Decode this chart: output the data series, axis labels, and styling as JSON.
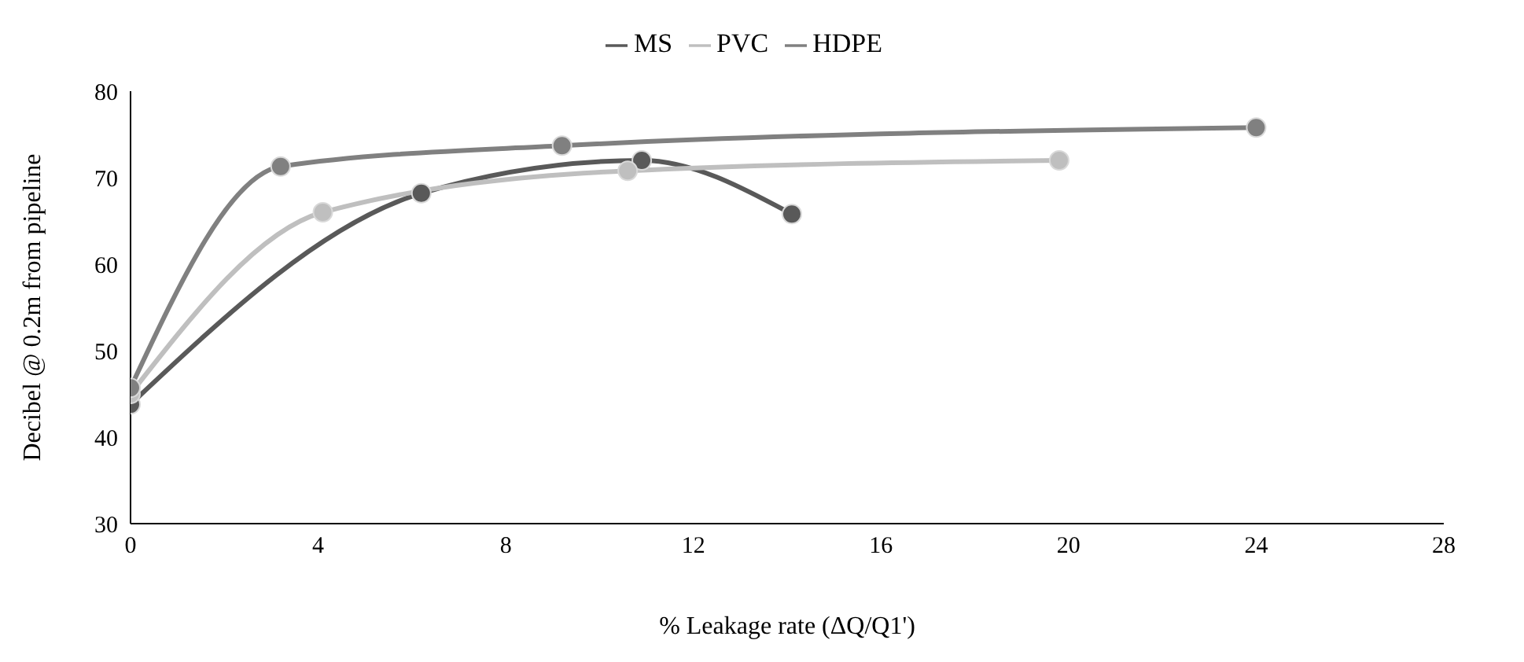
{
  "chart_data": {
    "type": "line",
    "xlabel": "% Leakage rate (ΔQ/Q1')",
    "ylabel": "Decibel @ 0.2m from pipeline",
    "xlim": [
      0,
      28
    ],
    "xticks": [
      0,
      4,
      8,
      12,
      16,
      20,
      24,
      28
    ],
    "ylim": [
      30,
      80
    ],
    "yticks": [
      30,
      40,
      50,
      60,
      70,
      80
    ],
    "grid": false,
    "legend": "top",
    "marker": "circle",
    "line_style": "solid",
    "series": [
      {
        "name": "MS",
        "color": "#595959",
        "x": [
          0,
          6.2,
          10.9,
          14.1
        ],
        "values": [
          43.8,
          68.2,
          72,
          65.8
        ]
      },
      {
        "name": "PVC",
        "color": "#bfbfbf",
        "x": [
          0,
          4.1,
          10.6,
          19.8
        ],
        "values": [
          45,
          66,
          70.8,
          72
        ]
      },
      {
        "name": "HDPE",
        "color": "#808080",
        "x": [
          0,
          3.2,
          9.2,
          24
        ],
        "values": [
          45.7,
          71.3,
          73.7,
          75.8
        ]
      }
    ]
  }
}
